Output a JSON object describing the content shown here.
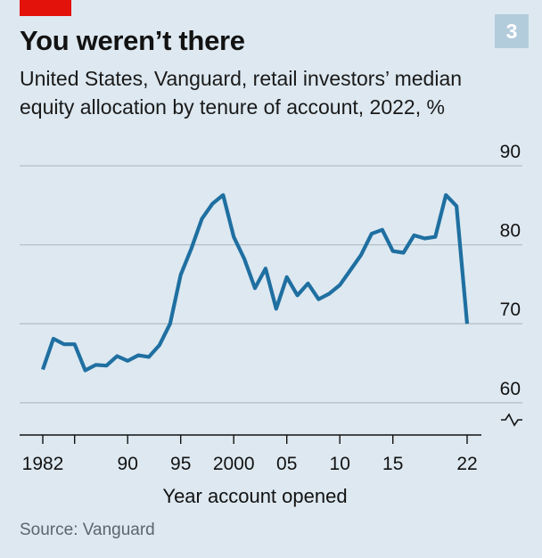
{
  "header": {
    "badge": "3",
    "title": "You weren’t there",
    "subtitle": "United States, Vanguard, retail investors’ median equity allocation by tenure of account, 2022, %"
  },
  "source": "Source: Vanguard",
  "colors": {
    "accent_red": "#e3120b",
    "line": "#1f6fa1",
    "grid": "#b4c0c8",
    "badge_bg": "#b3ccdc",
    "background": "#dde8f0"
  },
  "chart_data": {
    "type": "line",
    "title": "You weren’t there",
    "xlabel": "Year account opened",
    "ylabel": "",
    "xlim": [
      1982,
      2022
    ],
    "ylim": [
      60,
      90
    ],
    "y_axis_break": true,
    "yticks": [
      90,
      80,
      70,
      60
    ],
    "xticks": [
      1982,
      1985,
      1990,
      1995,
      2000,
      2005,
      2010,
      2015,
      2022
    ],
    "xtick_labels": [
      "1982",
      "",
      "90",
      "95",
      "2000",
      "05",
      "10",
      "15",
      "22"
    ],
    "grid": true,
    "series": [
      {
        "name": "",
        "x": [
          1982,
          1983,
          1984,
          1985,
          1986,
          1987,
          1988,
          1989,
          1990,
          1991,
          1992,
          1993,
          1994,
          1995,
          1996,
          1997,
          1998,
          1999,
          2000,
          2001,
          2002,
          2003,
          2004,
          2005,
          2006,
          2007,
          2008,
          2009,
          2010,
          2011,
          2012,
          2013,
          2014,
          2015,
          2016,
          2017,
          2018,
          2019,
          2020,
          2021,
          2022
        ],
        "y": [
          64.2,
          68.1,
          67.4,
          67.4,
          64.1,
          64.8,
          64.7,
          65.9,
          65.3,
          66.0,
          65.8,
          67.3,
          70.0,
          76.2,
          79.5,
          83.3,
          85.2,
          86.3,
          81.0,
          78.2,
          74.5,
          77.0,
          71.9,
          75.9,
          73.6,
          75.1,
          73.1,
          73.8,
          74.9,
          76.8,
          78.7,
          81.4,
          81.9,
          79.2,
          79.0,
          81.2,
          80.8,
          81.0,
          86.3,
          84.9,
          70.0
        ]
      }
    ]
  }
}
